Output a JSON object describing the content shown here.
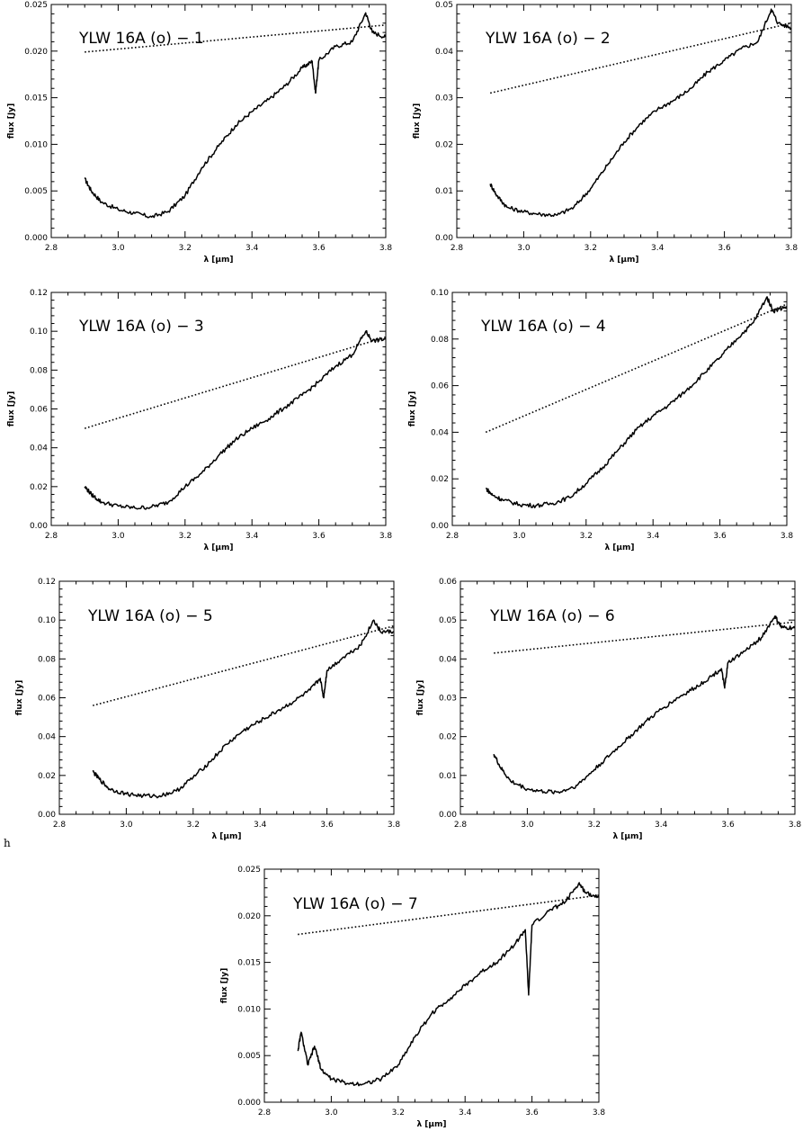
{
  "stray_label": "h",
  "chart_data": [
    {
      "type": "line",
      "title": "YLW 16A (o) − 1",
      "xlabel": "λ [μm]",
      "ylabel": "flux [Jy]",
      "xlim": [
        2.8,
        3.8
      ],
      "ylim": [
        0,
        0.025
      ],
      "xticks": [
        "2.8",
        "3.0",
        "3.2",
        "3.4",
        "3.6",
        "3.8"
      ],
      "yticks": [
        "0.000",
        "0.005",
        "0.010",
        "0.015",
        "0.020",
        "0.025"
      ],
      "series": [
        {
          "style": "solid",
          "x": [
            2.9,
            2.92,
            2.95,
            3.0,
            3.05,
            3.1,
            3.15,
            3.2,
            3.25,
            3.3,
            3.35,
            3.4,
            3.45,
            3.5,
            3.55,
            3.58,
            3.59,
            3.6,
            3.65,
            3.7,
            3.74,
            3.76,
            3.8
          ],
          "y": [
            0.0063,
            0.005,
            0.0038,
            0.003,
            0.0026,
            0.0022,
            0.0028,
            0.0045,
            0.0075,
            0.0098,
            0.012,
            0.0135,
            0.0148,
            0.0163,
            0.0182,
            0.0189,
            0.0155,
            0.019,
            0.0205,
            0.021,
            0.0241,
            0.022,
            0.0215
          ]
        },
        {
          "style": "dotted",
          "x": [
            2.9,
            3.8
          ],
          "y": [
            0.0199,
            0.0228
          ]
        }
      ]
    },
    {
      "type": "line",
      "title": "YLW 16A (o) − 2",
      "xlabel": "λ [μm]",
      "ylabel": "flux [Jy]",
      "xlim": [
        2.8,
        3.8
      ],
      "ylim": [
        0,
        0.05
      ],
      "xticks": [
        "2.8",
        "3.0",
        "3.2",
        "3.4",
        "3.6",
        "3.8"
      ],
      "yticks": [
        "0.00",
        "0.01",
        "0.02",
        "0.03",
        "0.04",
        "0.05"
      ],
      "series": [
        {
          "style": "solid",
          "x": [
            2.9,
            2.92,
            2.95,
            3.0,
            3.05,
            3.1,
            3.15,
            3.2,
            3.25,
            3.3,
            3.35,
            3.4,
            3.45,
            3.5,
            3.55,
            3.6,
            3.65,
            3.7,
            3.74,
            3.76,
            3.8
          ],
          "y": [
            0.0115,
            0.009,
            0.0065,
            0.0055,
            0.005,
            0.0048,
            0.0065,
            0.0105,
            0.0155,
            0.0205,
            0.0245,
            0.0275,
            0.0295,
            0.032,
            0.0355,
            0.038,
            0.0405,
            0.042,
            0.049,
            0.046,
            0.045
          ]
        },
        {
          "style": "dotted",
          "x": [
            2.9,
            3.8
          ],
          "y": [
            0.031,
            0.046
          ]
        }
      ]
    },
    {
      "type": "line",
      "title": "YLW 16A (o) − 3",
      "xlabel": "λ [μm]",
      "ylabel": "flux [Jy]",
      "xlim": [
        2.8,
        3.8
      ],
      "ylim": [
        0,
        0.12
      ],
      "xticks": [
        "2.8",
        "3.0",
        "3.2",
        "3.4",
        "3.6",
        "3.8"
      ],
      "yticks": [
        "0.00",
        "0.02",
        "0.04",
        "0.06",
        "0.08",
        "0.10",
        "0.12"
      ],
      "series": [
        {
          "style": "solid",
          "x": [
            2.9,
            2.92,
            2.95,
            3.0,
            3.05,
            3.1,
            3.15,
            3.2,
            3.25,
            3.3,
            3.35,
            3.4,
            3.45,
            3.5,
            3.55,
            3.6,
            3.65,
            3.7,
            3.74,
            3.76,
            3.8
          ],
          "y": [
            0.02,
            0.016,
            0.012,
            0.01,
            0.009,
            0.0095,
            0.012,
            0.02,
            0.027,
            0.036,
            0.044,
            0.05,
            0.055,
            0.061,
            0.067,
            0.074,
            0.082,
            0.088,
            0.1,
            0.095,
            0.096
          ]
        },
        {
          "style": "dotted",
          "x": [
            2.9,
            3.8
          ],
          "y": [
            0.05,
            0.097
          ]
        }
      ]
    },
    {
      "type": "line",
      "title": "YLW 16A (o) − 4",
      "xlabel": "λ [μm]",
      "ylabel": "flux [Jy]",
      "xlim": [
        2.8,
        3.8
      ],
      "ylim": [
        0,
        0.1
      ],
      "xticks": [
        "2.8",
        "3.0",
        "3.2",
        "3.4",
        "3.6",
        "3.8"
      ],
      "yticks": [
        "0.00",
        "0.02",
        "0.04",
        "0.06",
        "0.08",
        "0.10"
      ],
      "series": [
        {
          "style": "solid",
          "x": [
            2.9,
            2.92,
            2.95,
            3.0,
            3.05,
            3.1,
            3.15,
            3.2,
            3.25,
            3.3,
            3.35,
            3.4,
            3.45,
            3.5,
            3.55,
            3.6,
            3.65,
            3.7,
            3.74,
            3.76,
            3.8
          ],
          "y": [
            0.016,
            0.013,
            0.011,
            0.009,
            0.0085,
            0.0095,
            0.012,
            0.018,
            0.025,
            0.033,
            0.041,
            0.047,
            0.052,
            0.058,
            0.065,
            0.072,
            0.08,
            0.087,
            0.098,
            0.092,
            0.094
          ]
        },
        {
          "style": "dotted",
          "x": [
            2.9,
            3.8
          ],
          "y": [
            0.04,
            0.095
          ]
        }
      ]
    },
    {
      "type": "line",
      "title": "YLW 16A (o) − 5",
      "xlabel": "λ [μm]",
      "ylabel": "flux [Jy]",
      "xlim": [
        2.8,
        3.8
      ],
      "ylim": [
        0,
        0.12
      ],
      "xticks": [
        "2.8",
        "3.0",
        "3.2",
        "3.4",
        "3.6",
        "3.8"
      ],
      "yticks": [
        "0.00",
        "0.02",
        "0.04",
        "0.06",
        "0.08",
        "0.10",
        "0.12"
      ],
      "series": [
        {
          "style": "solid",
          "x": [
            2.9,
            2.92,
            2.95,
            3.0,
            3.05,
            3.1,
            3.15,
            3.2,
            3.25,
            3.3,
            3.35,
            3.4,
            3.45,
            3.5,
            3.55,
            3.58,
            3.59,
            3.6,
            3.65,
            3.7,
            3.74,
            3.76,
            3.8
          ],
          "y": [
            0.022,
            0.018,
            0.013,
            0.0105,
            0.0095,
            0.0095,
            0.012,
            0.019,
            0.027,
            0.036,
            0.043,
            0.048,
            0.053,
            0.058,
            0.064,
            0.07,
            0.06,
            0.074,
            0.081,
            0.087,
            0.1,
            0.094,
            0.094
          ]
        },
        {
          "style": "dotted",
          "x": [
            2.9,
            3.8
          ],
          "y": [
            0.056,
            0.097
          ]
        }
      ]
    },
    {
      "type": "line",
      "title": "YLW 16A (o) − 6",
      "xlabel": "λ [μm]",
      "ylabel": "flux [Jy]",
      "xlim": [
        2.8,
        3.8
      ],
      "ylim": [
        0,
        0.06
      ],
      "xticks": [
        "2.8",
        "3.0",
        "3.2",
        "3.4",
        "3.6",
        "3.8"
      ],
      "yticks": [
        "0.00",
        "0.01",
        "0.02",
        "0.03",
        "0.04",
        "0.05",
        "0.06"
      ],
      "series": [
        {
          "style": "solid",
          "x": [
            2.9,
            2.92,
            2.95,
            3.0,
            3.05,
            3.1,
            3.15,
            3.2,
            3.25,
            3.3,
            3.35,
            3.4,
            3.45,
            3.5,
            3.55,
            3.58,
            3.59,
            3.6,
            3.65,
            3.7,
            3.74,
            3.76,
            3.8
          ],
          "y": [
            0.0155,
            0.012,
            0.0085,
            0.0065,
            0.0058,
            0.0058,
            0.0075,
            0.0115,
            0.0155,
            0.0195,
            0.0235,
            0.027,
            0.03,
            0.0325,
            0.0355,
            0.0375,
            0.0325,
            0.039,
            0.042,
            0.0455,
            0.051,
            0.048,
            0.048
          ]
        },
        {
          "style": "dotted",
          "x": [
            2.9,
            3.8
          ],
          "y": [
            0.0415,
            0.0495
          ]
        }
      ]
    },
    {
      "type": "line",
      "title": "YLW 16A (o) − 7",
      "xlabel": "λ [μm]",
      "ylabel": "flux [Jy]",
      "xlim": [
        2.8,
        3.8
      ],
      "ylim": [
        0,
        0.025
      ],
      "xticks": [
        "2.8",
        "3.0",
        "3.2",
        "3.4",
        "3.6",
        "3.8"
      ],
      "yticks": [
        "0.000",
        "0.005",
        "0.010",
        "0.015",
        "0.020",
        "0.025"
      ],
      "series": [
        {
          "style": "solid",
          "x": [
            2.9,
            2.91,
            2.93,
            2.95,
            2.97,
            3.0,
            3.05,
            3.1,
            3.15,
            3.2,
            3.25,
            3.3,
            3.35,
            3.4,
            3.45,
            3.5,
            3.55,
            3.58,
            3.59,
            3.6,
            3.65,
            3.7,
            3.74,
            3.76,
            3.8
          ],
          "y": [
            0.0055,
            0.0075,
            0.004,
            0.006,
            0.0035,
            0.0025,
            0.002,
            0.002,
            0.0025,
            0.004,
            0.007,
            0.0095,
            0.011,
            0.0125,
            0.014,
            0.0152,
            0.017,
            0.0185,
            0.0115,
            0.019,
            0.0205,
            0.0215,
            0.0235,
            0.0225,
            0.022
          ]
        },
        {
          "style": "dotted",
          "x": [
            2.9,
            3.8
          ],
          "y": [
            0.018,
            0.0222
          ]
        }
      ]
    }
  ]
}
